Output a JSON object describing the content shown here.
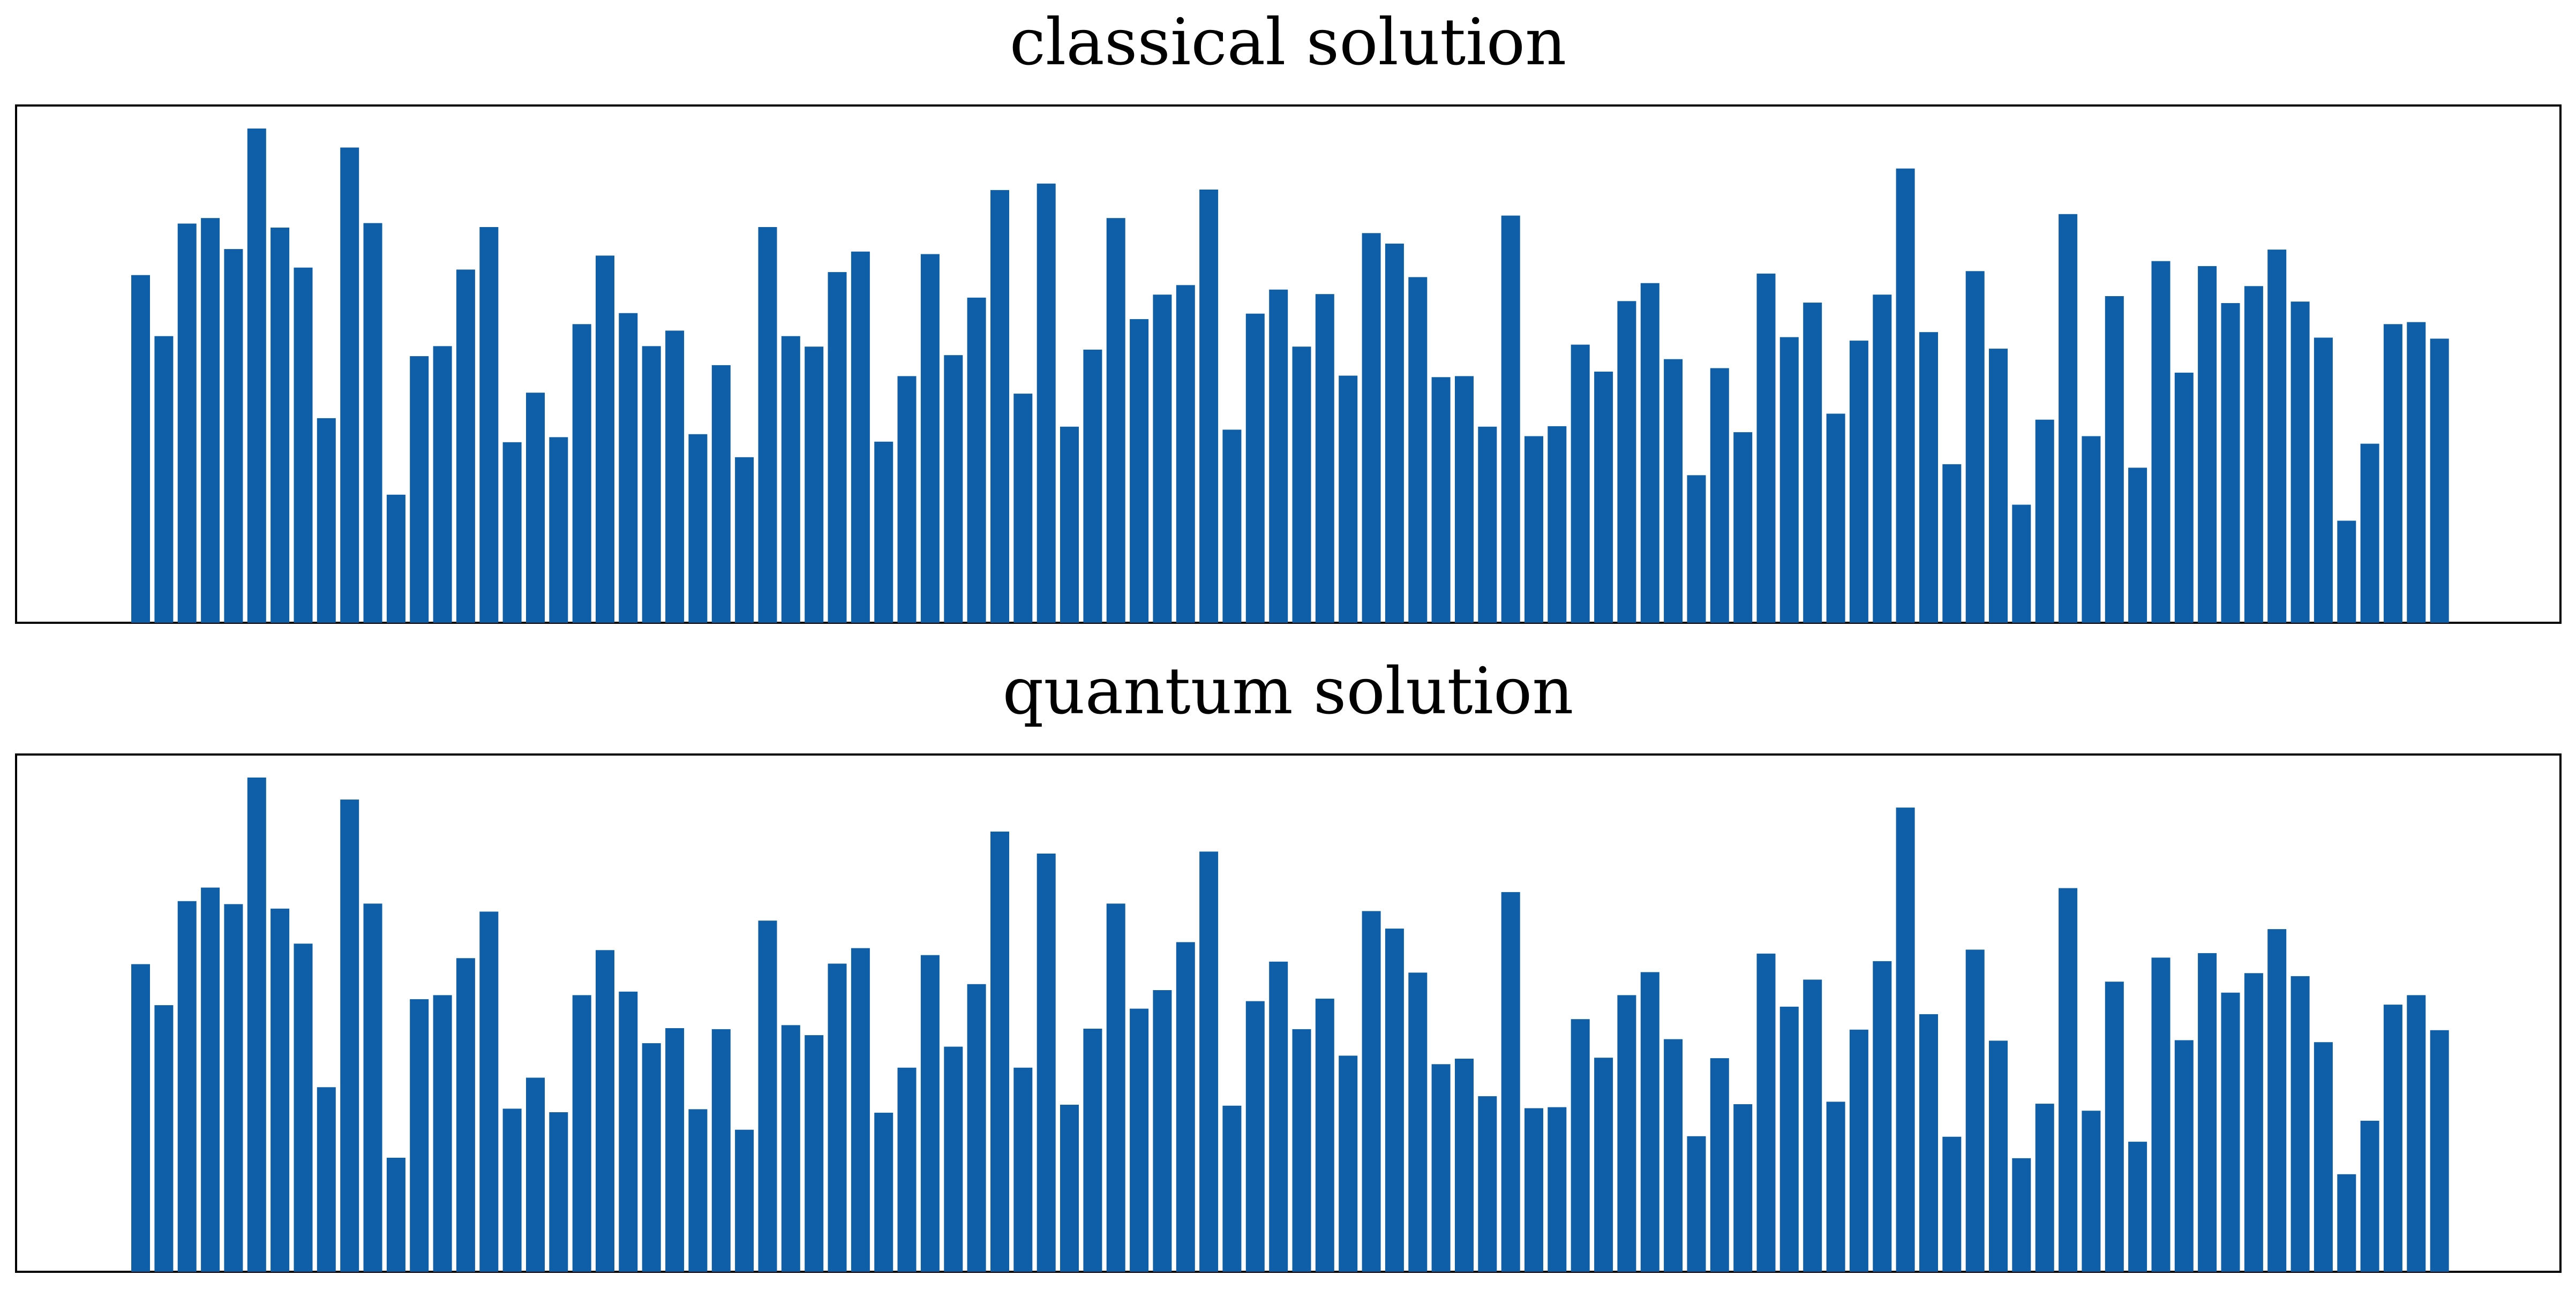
{
  "chart_data": [
    {
      "type": "bar",
      "title": "classical solution",
      "xlabel": "",
      "ylabel": "",
      "ylim": [
        0,
        1
      ],
      "grid": false,
      "color": "#0f5ea8",
      "values": [
        0.695,
        0.573,
        0.798,
        0.809,
        0.747,
        0.988,
        0.79,
        0.71,
        0.409,
        0.95,
        0.799,
        0.256,
        0.533,
        0.553,
        0.706,
        0.791,
        0.361,
        0.46,
        0.371,
        0.597,
        0.734,
        0.619,
        0.553,
        0.584,
        0.377,
        0.515,
        0.331,
        0.791,
        0.573,
        0.552,
        0.701,
        0.742,
        0.362,
        0.493,
        0.737,
        0.535,
        0.65,
        0.865,
        0.458,
        0.878,
        0.392,
        0.546,
        0.809,
        0.607,
        0.656,
        0.675,
        0.866,
        0.386,
        0.618,
        0.666,
        0.552,
        0.657,
        0.494,
        0.779,
        0.758,
        0.691,
        0.491,
        0.493,
        0.392,
        0.814,
        0.373,
        0.393,
        0.556,
        0.502,
        0.643,
        0.679,
        0.527,
        0.295,
        0.509,
        0.381,
        0.698,
        0.571,
        0.64,
        0.418,
        0.564,
        0.656,
        0.908,
        0.581,
        0.317,
        0.703,
        0.548,
        0.236,
        0.406,
        0.817,
        0.373,
        0.653,
        0.31,
        0.723,
        0.5,
        0.713,
        0.639,
        0.673,
        0.746,
        0.642,
        0.57,
        0.204,
        0.358,
        0.597,
        0.601,
        0.568
      ]
    },
    {
      "type": "bar",
      "title": "quantum solution",
      "xlabel": "",
      "ylabel": "",
      "ylim": [
        0,
        1
      ],
      "grid": false,
      "color": "#0f5ea8",
      "values": [
        0.615,
        0.533,
        0.741,
        0.768,
        0.735,
        0.988,
        0.726,
        0.656,
        0.369,
        0.944,
        0.736,
        0.228,
        0.545,
        0.553,
        0.627,
        0.72,
        0.326,
        0.388,
        0.319,
        0.553,
        0.643,
        0.56,
        0.457,
        0.487,
        0.325,
        0.485,
        0.284,
        0.702,
        0.493,
        0.473,
        0.616,
        0.647,
        0.318,
        0.408,
        0.633,
        0.45,
        0.575,
        0.88,
        0.408,
        0.836,
        0.334,
        0.486,
        0.736,
        0.526,
        0.563,
        0.659,
        0.84,
        0.332,
        0.541,
        0.62,
        0.485,
        0.546,
        0.432,
        0.721,
        0.686,
        0.598,
        0.415,
        0.426,
        0.351,
        0.759,
        0.327,
        0.329,
        0.505,
        0.428,
        0.553,
        0.599,
        0.465,
        0.271,
        0.427,
        0.335,
        0.636,
        0.53,
        0.584,
        0.34,
        0.484,
        0.621,
        0.928,
        0.515,
        0.27,
        0.644,
        0.462,
        0.227,
        0.336,
        0.767,
        0.322,
        0.58,
        0.26,
        0.628,
        0.463,
        0.637,
        0.558,
        0.597,
        0.685,
        0.591,
        0.459,
        0.195,
        0.302,
        0.534,
        0.553,
        0.483
      ]
    }
  ]
}
